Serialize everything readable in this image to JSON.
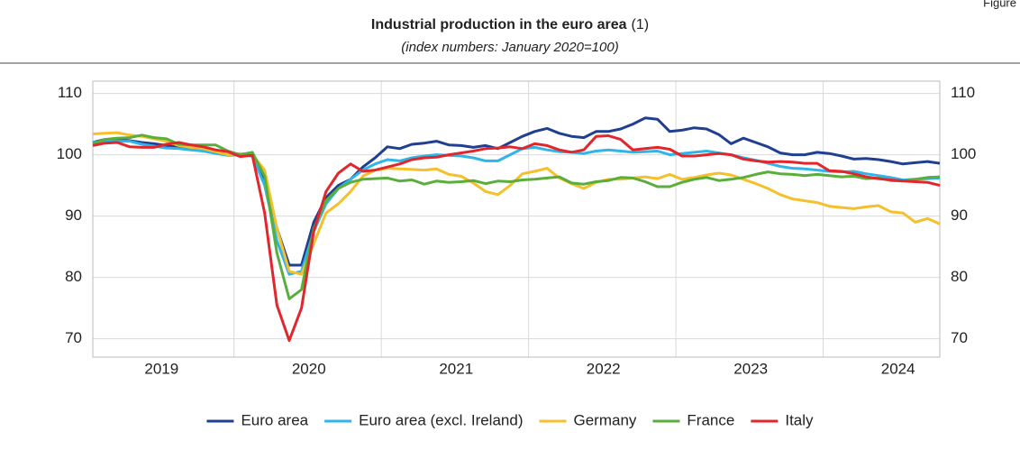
{
  "corner_label": "Figure",
  "chart_data": {
    "type": "line",
    "title": "Industrial production in the euro area",
    "title_note": "(1)",
    "subtitle": "(index numbers: January 2020=100)",
    "categories": [
      null,
      null,
      null,
      null,
      null,
      null,
      "2019",
      null,
      null,
      null,
      null,
      null,
      null,
      null,
      null,
      null,
      null,
      null,
      "2020",
      null,
      null,
      null,
      null,
      null,
      null,
      null,
      null,
      null,
      null,
      null,
      "2021",
      null,
      null,
      null,
      null,
      null,
      null,
      null,
      null,
      null,
      null,
      null,
      "2022",
      null,
      null,
      null,
      null,
      null,
      null,
      null,
      null,
      null,
      null,
      null,
      "2023",
      null,
      null,
      null,
      null,
      null,
      null,
      null,
      null,
      null,
      null,
      null,
      "2024",
      null,
      null,
      null
    ],
    "ylim": [
      67,
      112
    ],
    "yticks": [
      70,
      80,
      90,
      100,
      110
    ],
    "grid": true,
    "legend": "bottom",
    "series": [
      {
        "name": "Euro area",
        "color": "#1f3f8f",
        "values": [
          102.0,
          102.5,
          102.5,
          102.3,
          102.0,
          101.8,
          101.5,
          101.2,
          101.0,
          100.8,
          100.3,
          100.0,
          100.0,
          99.8,
          96,
          88,
          82,
          82,
          89,
          93,
          95,
          96,
          98,
          99.5,
          101.3,
          101,
          101.7,
          101.9,
          102.2,
          101.6,
          101.5,
          101.2,
          101.5,
          101,
          102,
          103,
          103.8,
          104.3,
          103.5,
          103,
          102.8,
          103.8,
          103.8,
          104.2,
          105,
          106,
          105.8,
          103.8,
          104,
          104.4,
          104.2,
          103.3,
          101.8,
          102.7,
          102,
          101.3,
          100.3,
          100,
          100,
          100.4,
          100.2,
          99.8,
          99.3,
          99.4,
          99.2,
          98.9,
          98.5,
          98.7,
          98.9,
          98.6
        ]
      },
      {
        "name": "Euro area (excl. Ireland)",
        "color": "#2fb5e8",
        "values": [
          102,
          102.2,
          102.2,
          102.2,
          101.7,
          101.4,
          101.1,
          101,
          100.8,
          100.6,
          100.2,
          99.9,
          100,
          99.8,
          95,
          86,
          80.5,
          81,
          87.5,
          92,
          94.5,
          96,
          97.5,
          98.5,
          99.2,
          99,
          99.5,
          99.8,
          100,
          99.9,
          99.8,
          99.5,
          99,
          99,
          100,
          101,
          101.2,
          100.8,
          100.5,
          100.4,
          100.2,
          100.6,
          100.8,
          100.6,
          100.4,
          100.5,
          100.6,
          100,
          100.2,
          100.4,
          100.6,
          100.3,
          100,
          99.5,
          99.1,
          98.6,
          98.1,
          97.8,
          97.7,
          97.5,
          97.3,
          97.2,
          97.3,
          96.9,
          96.6,
          96.3,
          95.9,
          96,
          96.1,
          96.2
        ]
      },
      {
        "name": "Germany",
        "color": "#f5c02c",
        "values": [
          103.4,
          103.5,
          103.6,
          103.2,
          103,
          102.6,
          102.2,
          101.5,
          101.2,
          101,
          100.5,
          100,
          100.2,
          100,
          97.5,
          88,
          81,
          80.5,
          85.5,
          90.5,
          92,
          94,
          96.5,
          97.5,
          97.8,
          97.7,
          97.6,
          97.5,
          97.7,
          96.8,
          96.5,
          95.4,
          94,
          93.5,
          95,
          96.9,
          97.3,
          97.8,
          96.2,
          95.3,
          94.5,
          95.5,
          96,
          96,
          96.2,
          96.4,
          96.1,
          96.8,
          96,
          96.3,
          96.7,
          97,
          96.7,
          96,
          95.3,
          94.5,
          93.5,
          92.8,
          92.5,
          92.2,
          91.6,
          91.4,
          91.2,
          91.5,
          91.7,
          90.7,
          90.5,
          89,
          89.6,
          88.7
        ]
      },
      {
        "name": "France",
        "color": "#5aae3c",
        "values": [
          101.8,
          102.5,
          102.7,
          102.8,
          103.2,
          102.8,
          102.6,
          101.7,
          101.6,
          101.6,
          101.6,
          100.6,
          100,
          100.4,
          96.5,
          84,
          76.5,
          78,
          88,
          92.5,
          94.5,
          95.5,
          96,
          96.1,
          96.2,
          95.7,
          95.9,
          95.2,
          95.7,
          95.5,
          95.6,
          95.8,
          95.3,
          95.7,
          95.6,
          95.9,
          96,
          96.2,
          96.4,
          95.4,
          95.2,
          95.6,
          95.8,
          96.3,
          96.2,
          95.6,
          94.8,
          94.8,
          95.5,
          96,
          96.3,
          95.8,
          96,
          96.3,
          96.8,
          97.2,
          96.9,
          96.8,
          96.6,
          96.8,
          96.6,
          96.4,
          96.5,
          96.1,
          96.2,
          95.8,
          95.7,
          96,
          96.3,
          96.4
        ]
      },
      {
        "name": "Italy",
        "color": "#e2262c",
        "values": [
          101.5,
          101.9,
          102,
          101.3,
          101.2,
          101.2,
          101.7,
          102,
          101.6,
          101.3,
          100.8,
          100.5,
          99.7,
          99.9,
          90.5,
          75.5,
          69.7,
          75,
          87.5,
          94,
          97,
          98.5,
          97.3,
          97.5,
          98,
          98.5,
          99.2,
          99.5,
          99.6,
          100,
          100.3,
          100.6,
          101,
          101.1,
          101.3,
          101,
          101.8,
          101.5,
          100.8,
          100.4,
          100.8,
          103,
          103.1,
          102.5,
          100.8,
          101,
          101.2,
          100.9,
          99.8,
          99.8,
          100,
          100.2,
          100,
          99.3,
          99,
          98.8,
          98.9,
          98.8,
          98.6,
          98.6,
          97.4,
          97.3,
          96.9,
          96.4,
          96.1,
          95.9,
          95.7,
          95.6,
          95.5,
          95.0
        ]
      }
    ]
  }
}
